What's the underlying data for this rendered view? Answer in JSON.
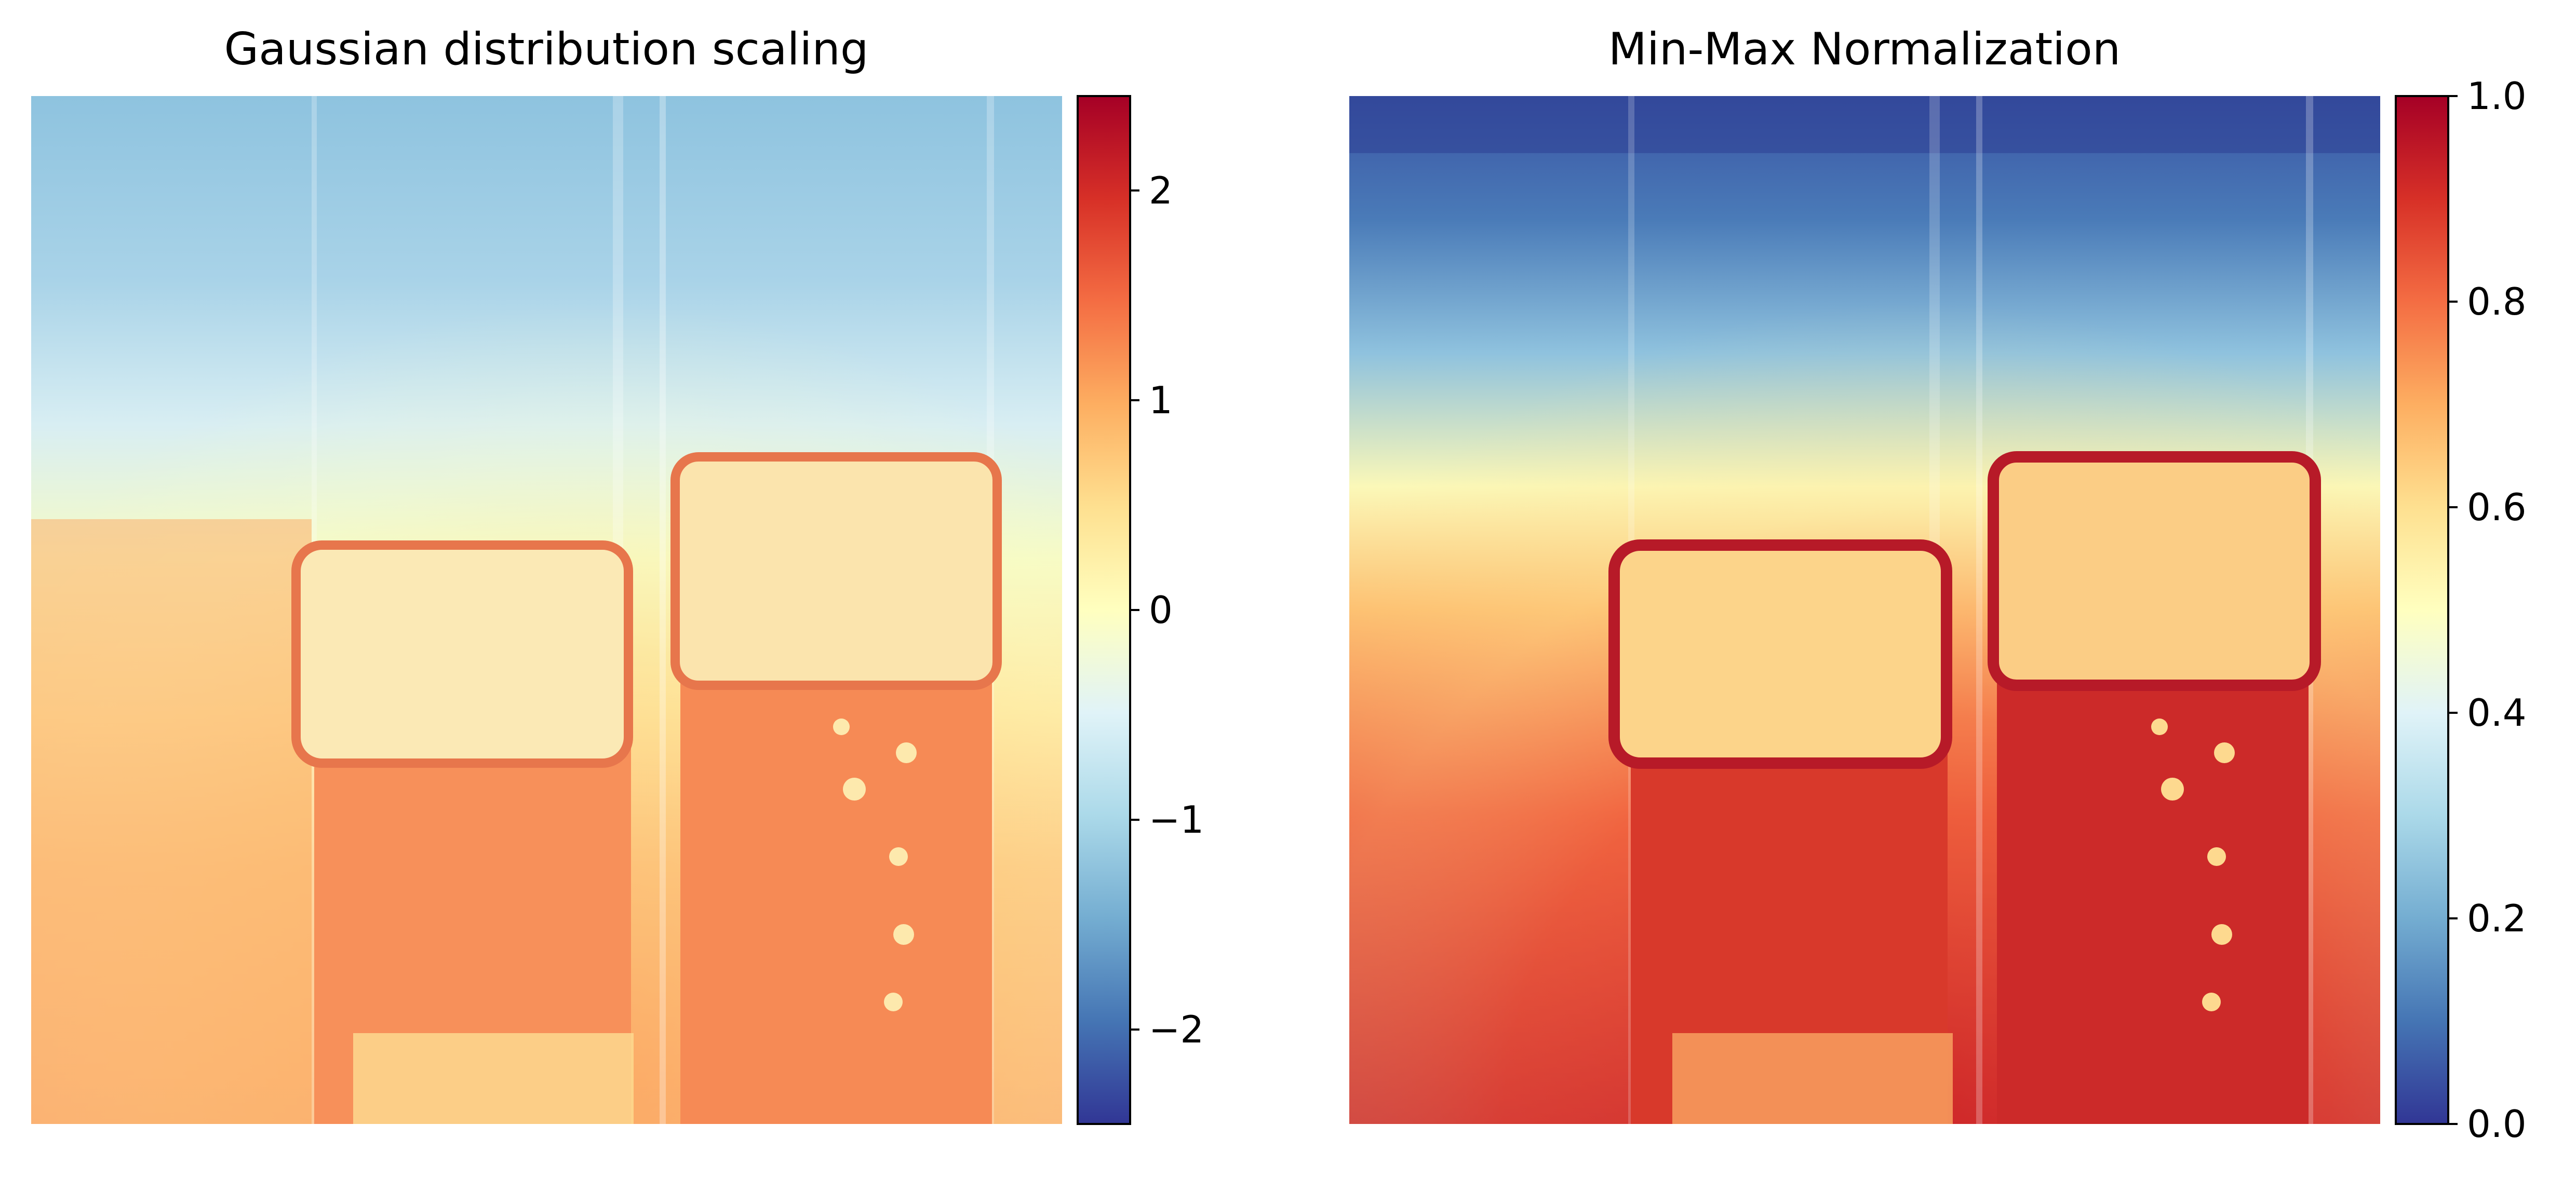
{
  "figure": {
    "panels": [
      {
        "title": "Gaussian distribution scaling",
        "colorbar": {
          "range": [
            -2.45,
            2.45
          ],
          "ticks": [
            -2,
            -1,
            0,
            1,
            2
          ],
          "tick_labels": [
            "−2",
            "−1",
            "0",
            "1",
            "2"
          ]
        }
      },
      {
        "title": "Min-Max Normalization",
        "colorbar": {
          "range": [
            0,
            1
          ],
          "ticks": [
            0.0,
            0.2,
            0.4,
            0.6,
            0.8,
            1.0
          ],
          "tick_labels": [
            "0.0",
            "0.2",
            "0.4",
            "0.6",
            "0.8",
            "1.0"
          ]
        }
      }
    ]
  },
  "chart_data": [
    {
      "type": "heatmap",
      "title": "Gaussian distribution scaling",
      "colormap": "RdYlBu_r",
      "colorscale": [
        "#313695",
        "#4575b4",
        "#74add1",
        "#abd9e9",
        "#e0f3f8",
        "#ffffbf",
        "#fee090",
        "#fdae61",
        "#f46d43",
        "#d73027",
        "#a50026"
      ],
      "value_range": [
        -2.45,
        2.45
      ],
      "colorbar_ticks": [
        -2,
        -1,
        0,
        1,
        2
      ],
      "axes_visible": false
    },
    {
      "type": "heatmap",
      "title": "Min-Max Normalization",
      "colormap": "RdYlBu_r",
      "colorscale": [
        "#313695",
        "#4575b4",
        "#74add1",
        "#abd9e9",
        "#e0f3f8",
        "#ffffbf",
        "#fee090",
        "#fdae61",
        "#f46d43",
        "#d73027",
        "#a50026"
      ],
      "value_range": [
        0,
        1
      ],
      "colorbar_ticks": [
        0.0,
        0.2,
        0.4,
        0.6,
        0.8,
        1.0
      ],
      "axes_visible": false
    }
  ]
}
